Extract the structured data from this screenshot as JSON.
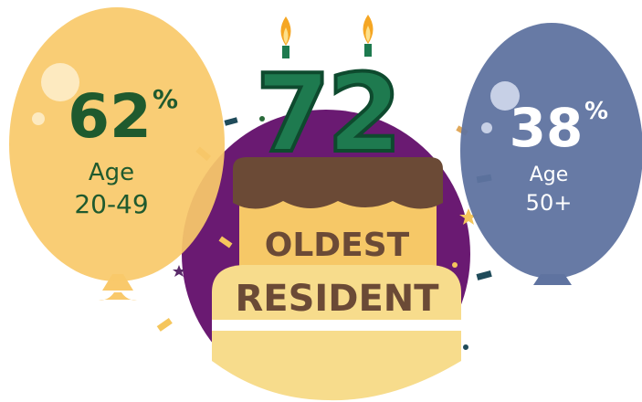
{
  "left_balloon": {
    "value": "62",
    "unit": "%",
    "label": "Age",
    "range": "20-49"
  },
  "right_balloon": {
    "value": "38",
    "unit": "%",
    "label": "Age",
    "range": "50+"
  },
  "cake": {
    "number": "72",
    "line1": "OLDEST",
    "line2": "RESIDENT"
  }
}
